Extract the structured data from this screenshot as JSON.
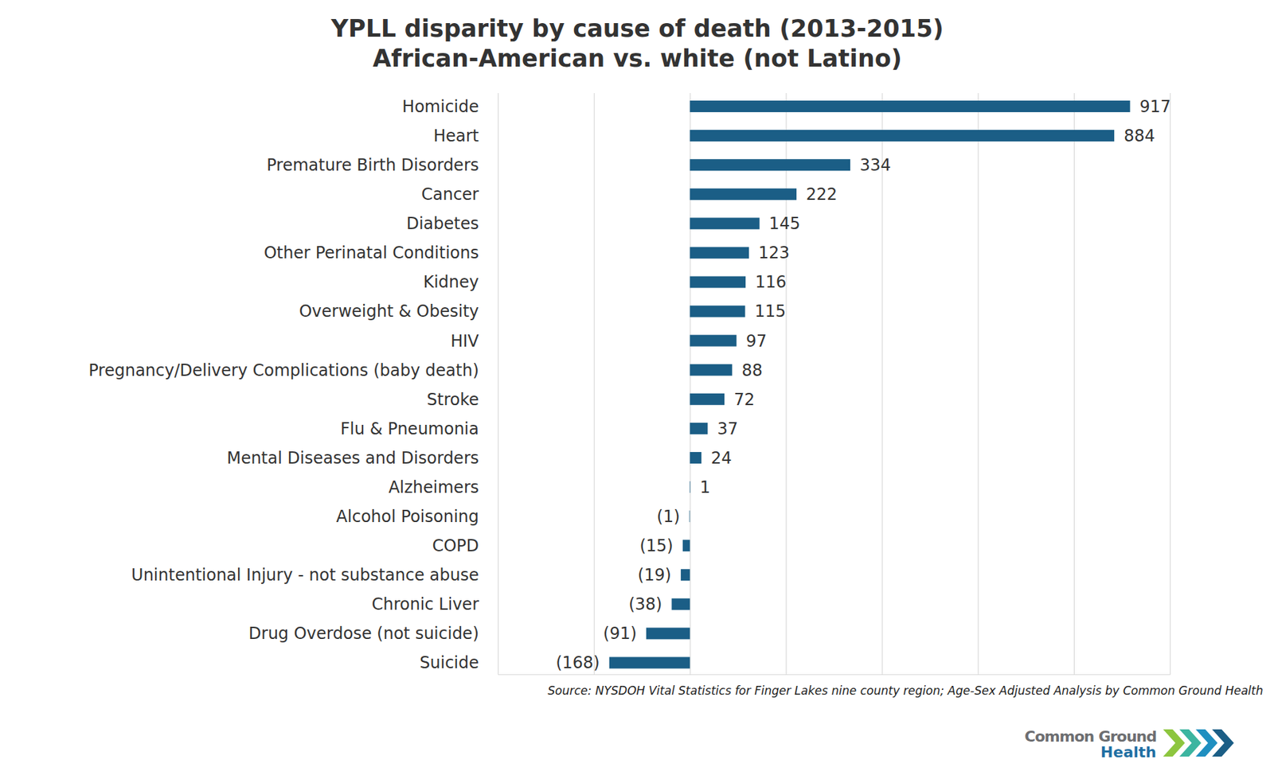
{
  "chart_data": {
    "type": "bar",
    "orientation": "horizontal",
    "title": "YPLL disparity by cause of death (2013-2015)",
    "subtitle": "African-American vs. white (not Latino)",
    "categories": [
      "Homicide",
      "Heart",
      "Premature Birth Disorders",
      "Cancer",
      "Diabetes",
      "Other Perinatal Conditions",
      "Kidney",
      "Overweight & Obesity",
      "HIV",
      "Pregnancy/Delivery Complications (baby death)",
      "Stroke",
      "Flu & Pneumonia",
      "Mental Diseases and Disorders",
      "Alzheimers",
      "Alcohol Poisoning",
      "COPD",
      "Unintentional Injury - not substance abuse",
      "Chronic Liver",
      "Drug Overdose (not suicide)",
      "Suicide"
    ],
    "values": [
      917,
      884,
      334,
      222,
      145,
      123,
      116,
      115,
      97,
      88,
      72,
      37,
      24,
      1,
      -1,
      -15,
      -19,
      -38,
      -91,
      -168
    ],
    "value_labels": [
      "917",
      "884",
      "334",
      "222",
      "145",
      "123",
      "116",
      "115",
      "97",
      "88",
      "72",
      "37",
      "24",
      "1",
      "(1)",
      "(15)",
      "(19)",
      "(38)",
      "(91)",
      "(168)"
    ],
    "color": "#1b5e86",
    "xlim": [
      -400,
      1000
    ],
    "xticks": [
      -400,
      -200,
      0,
      200,
      400,
      600,
      800,
      1000
    ],
    "grid": true,
    "data_labels": true,
    "tick_labels": false,
    "annotations": [
      "Source: NYSDOH Vital Statistics for Finger Lakes nine county region; Age-Sex Adjusted Analysis by Common Ground Health",
      "Common Ground",
      "Health"
    ]
  }
}
